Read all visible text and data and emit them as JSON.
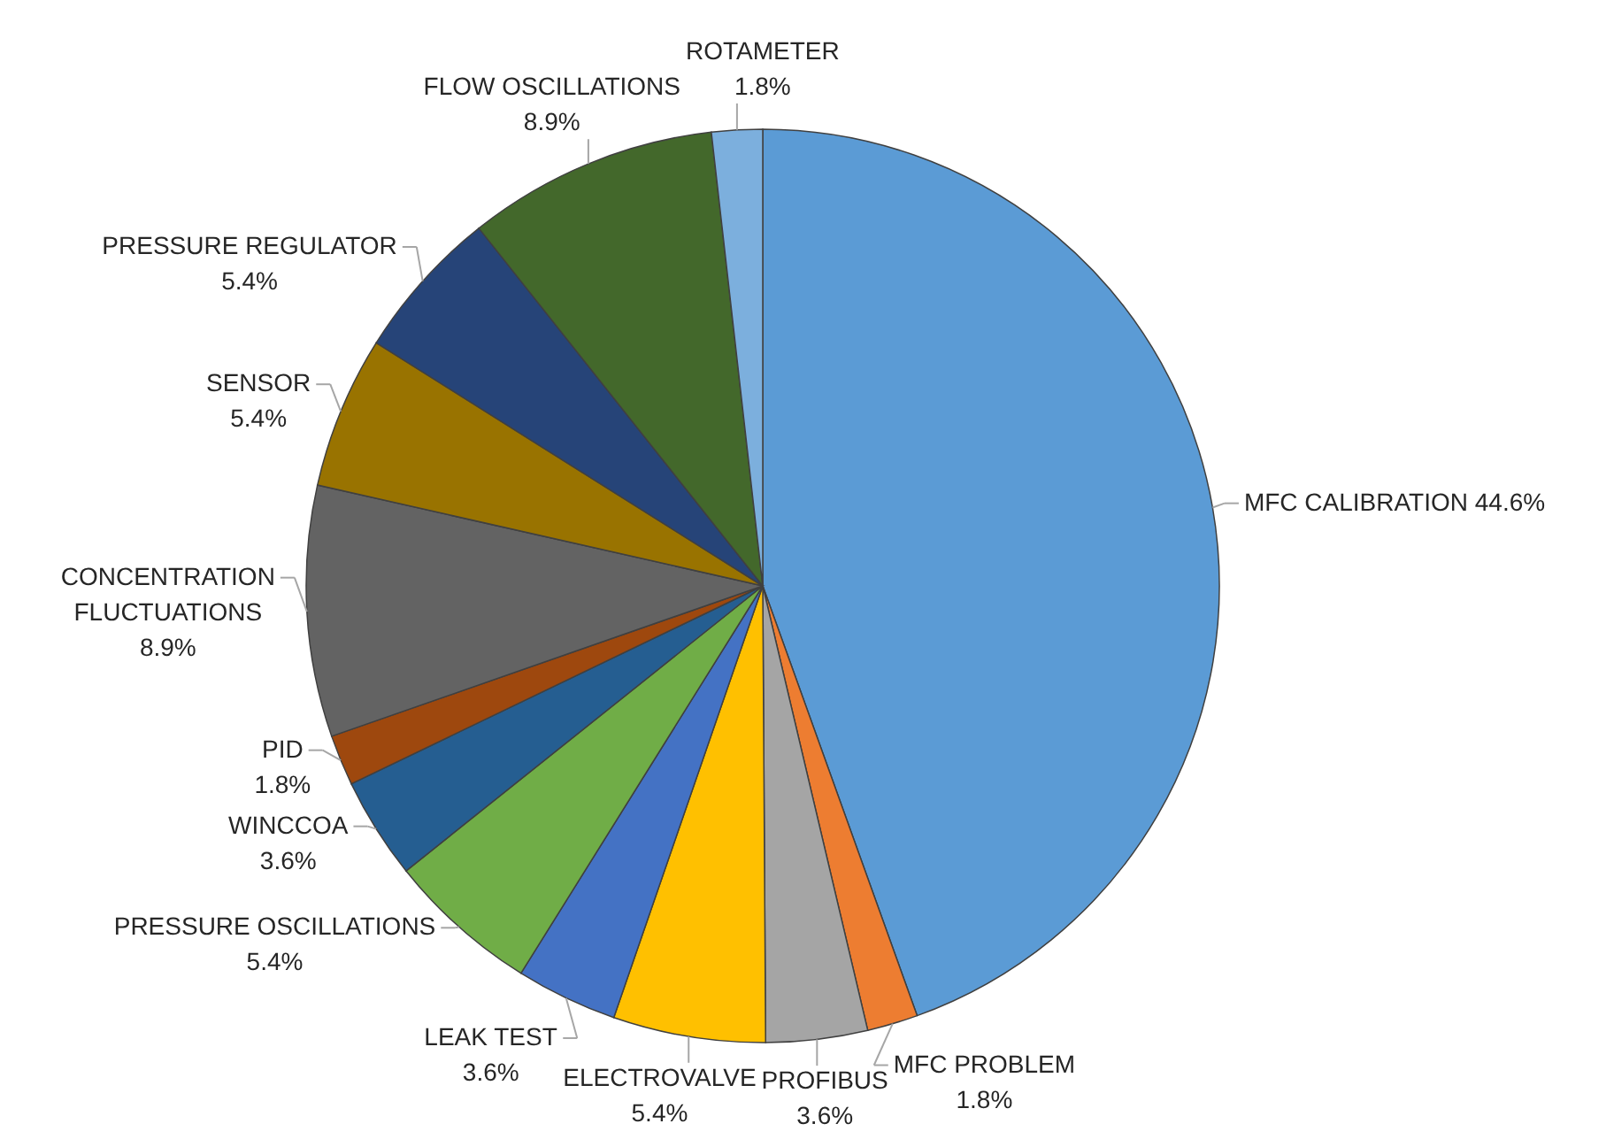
{
  "chart_data": {
    "type": "pie",
    "categories": [
      "MFC CALIBRATION",
      "MFC PROBLEM",
      "PROFIBUS",
      "ELECTROVALVE",
      "LEAK TEST",
      "PRESSURE OSCILLATIONS",
      "WINCCOA",
      "PID",
      "CONCENTRATION FLUCTUATIONS",
      "SENSOR",
      "PRESSURE REGULATOR",
      "FLOW OSCILLATIONS",
      "ROTAMETER"
    ],
    "values": [
      44.6,
      1.8,
      3.6,
      5.4,
      3.6,
      5.4,
      3.6,
      1.8,
      8.9,
      5.4,
      5.4,
      8.9,
      1.8
    ],
    "colors": [
      "#5b9bd5",
      "#ed7d31",
      "#a5a5a5",
      "#ffc000",
      "#4472c4",
      "#70ad47",
      "#255e91",
      "#9e480e",
      "#636363",
      "#997300",
      "#264478",
      "#43682b",
      "#7cafdd"
    ],
    "value_labels": [
      "44.6%",
      "1.8%",
      "3.6%",
      "5.4%",
      "3.6%",
      "5.4%",
      "3.6%",
      "1.8%",
      "8.9%",
      "5.4%",
      "5.4%",
      "8.9%",
      "1.8%"
    ]
  }
}
